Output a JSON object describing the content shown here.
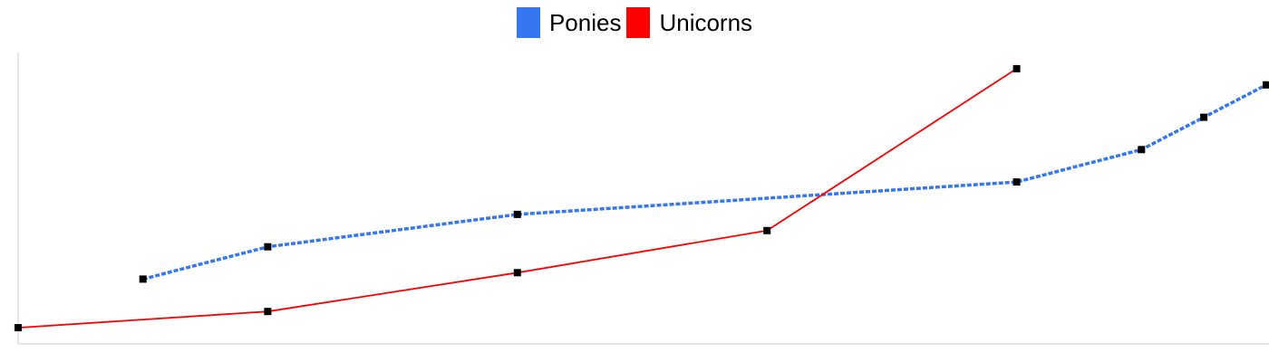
{
  "chart_data": {
    "type": "line",
    "title": "",
    "xlabel": "",
    "ylabel": "",
    "grid": false,
    "legend_position": "top",
    "xlim": [
      0,
      10
    ],
    "ylim": [
      0,
      9
    ],
    "series": [
      {
        "name": "Ponies",
        "color": "#3477f0",
        "line_style": "dashed",
        "points": [
          [
            1,
            2
          ],
          [
            2,
            3
          ],
          [
            4,
            4
          ],
          [
            8,
            5
          ],
          [
            9,
            6
          ],
          [
            9.5,
            7
          ],
          [
            10,
            8
          ]
        ]
      },
      {
        "name": "Unicorns",
        "color": "#ff0000",
        "line_style": "solid",
        "points": [
          [
            0,
            0.5
          ],
          [
            2,
            1
          ],
          [
            4,
            2.2
          ],
          [
            6,
            3.5
          ],
          [
            8,
            8.5
          ]
        ]
      }
    ]
  }
}
